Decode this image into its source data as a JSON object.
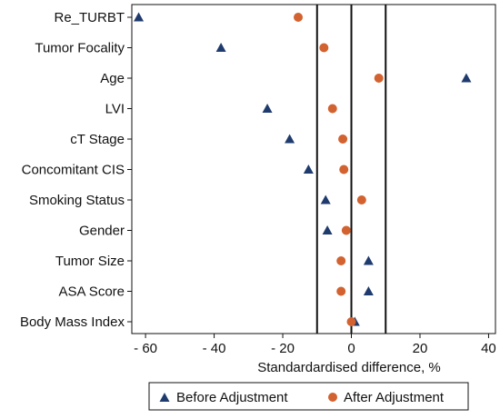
{
  "chart_data": {
    "type": "scatter",
    "title": "",
    "xlabel": "Standardardised difference, %",
    "ylabel": "",
    "xlim": [
      -64,
      42
    ],
    "xticks": [
      -60,
      -40,
      -20,
      0,
      20,
      40
    ],
    "xtick_labels": [
      "- 60",
      "- 40",
      "- 20",
      "0",
      "20",
      "40"
    ],
    "categories": [
      "Re_TURBT",
      "Tumor Focality",
      "Age",
      "LVI",
      "cT Stage",
      "Concomitant CIS",
      "Smoking Status",
      "Gender",
      "Tumor Size",
      "ASA Score",
      "Body Mass Index"
    ],
    "series": [
      {
        "name": "Before Adjustment",
        "marker": "triangle",
        "color": "#1f3b6e",
        "values": [
          -62,
          -38,
          33.5,
          -24.5,
          -18,
          -12.5,
          -7.5,
          -7,
          5,
          5,
          1
        ]
      },
      {
        "name": "After Adjustment",
        "marker": "circle",
        "color": "#d2622f",
        "values": [
          -15.5,
          -8,
          8,
          -5.5,
          -2.5,
          -2.2,
          3,
          -1.5,
          -3,
          -3,
          0
        ]
      }
    ],
    "reference_lines_x": [
      -10,
      0,
      10
    ],
    "grid": false,
    "legend_position": "bottom"
  }
}
